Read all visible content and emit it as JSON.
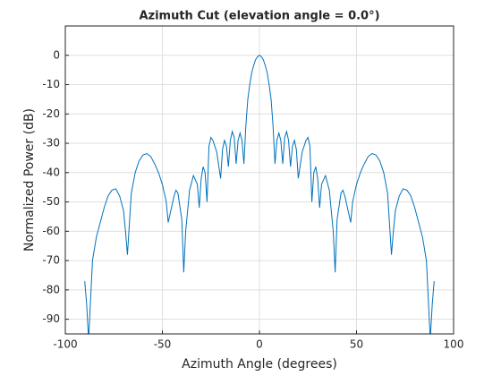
{
  "chart_data": {
    "type": "line",
    "title": "Azimuth Cut (elevation angle = 0.0°)",
    "xlabel": "Azimuth Angle (degrees)",
    "ylabel": "Normalized Power (dB)",
    "x": [
      -90,
      -89,
      -88,
      -86,
      -84,
      -82,
      -80,
      -78,
      -76,
      -74,
      -72,
      -70,
      -69,
      -68,
      -66,
      -64,
      -62,
      -60,
      -58,
      -56,
      -54,
      -52,
      -50,
      -48,
      -47,
      -46,
      -44,
      -43,
      -42,
      -40,
      -39,
      -38,
      -36,
      -34,
      -32,
      -31,
      -30,
      -29,
      -28,
      -27,
      -26,
      -25,
      -24,
      -22,
      -20,
      -19,
      -18,
      -17,
      -16,
      -15,
      -14,
      -13,
      -12,
      -11,
      -10,
      -9,
      -8,
      -7,
      -6,
      -5,
      -4,
      -3,
      -2,
      -1,
      0,
      1,
      2,
      3,
      4,
      5,
      6,
      7,
      8,
      9,
      10,
      11,
      12,
      13,
      14,
      15,
      16,
      17,
      18,
      19,
      20,
      22,
      24,
      25,
      26,
      27,
      28,
      29,
      30,
      31,
      32,
      34,
      36,
      38,
      39,
      40,
      42,
      43,
      44,
      46,
      47,
      48,
      50,
      52,
      54,
      56,
      58,
      60,
      62,
      64,
      66,
      68,
      69,
      70,
      72,
      74,
      76,
      78,
      80,
      82,
      84,
      86,
      88,
      89,
      90
    ],
    "series": [
      {
        "color": "#0072bd",
        "values": [
          -77,
          -85,
          -97,
          -70,
          -62,
          -57,
          -52,
          -48,
          -46,
          -45.5,
          -48,
          -53,
          -60,
          -68,
          -47,
          -40,
          -36,
          -34,
          -33.5,
          -34.5,
          -37,
          -40,
          -44,
          -50,
          -57,
          -54,
          -48,
          -46,
          -47,
          -56,
          -74,
          -60,
          -46,
          -41,
          -44,
          -52,
          -42,
          -38,
          -40,
          -50,
          -31,
          -28,
          -29,
          -33,
          -42,
          -32,
          -29,
          -31,
          -38,
          -29,
          -26,
          -28,
          -37,
          -29,
          -26.5,
          -29,
          -37,
          -24,
          -15,
          -10,
          -6,
          -3.5,
          -1.5,
          -0.5,
          0,
          -0.5,
          -1.5,
          -3.5,
          -6,
          -10,
          -15,
          -24,
          -37,
          -29,
          -26.5,
          -29,
          -37,
          -28,
          -26,
          -29,
          -38,
          -31,
          -29,
          -32,
          -42,
          -33,
          -29,
          -28,
          -31,
          -50,
          -40,
          -38,
          -42,
          -52,
          -44,
          -41,
          -46,
          -60,
          -74,
          -56,
          -47,
          -46,
          -48,
          -54,
          -57,
          -50,
          -44,
          -40,
          -37,
          -34.5,
          -33.5,
          -34,
          -36,
          -40,
          -47,
          -68,
          -60,
          -53,
          -48,
          -45.5,
          -46,
          -48,
          -52,
          -57,
          -62,
          -70,
          -97,
          -85,
          -77
        ]
      }
    ],
    "xlim": [
      -100,
      100
    ],
    "xticks": [
      -100,
      -50,
      0,
      50,
      100
    ],
    "ylim": [
      -95,
      10
    ],
    "yticks": [
      -90,
      -80,
      -70,
      -60,
      -50,
      -40,
      -30,
      -20,
      -10,
      0
    ],
    "grid": true
  }
}
